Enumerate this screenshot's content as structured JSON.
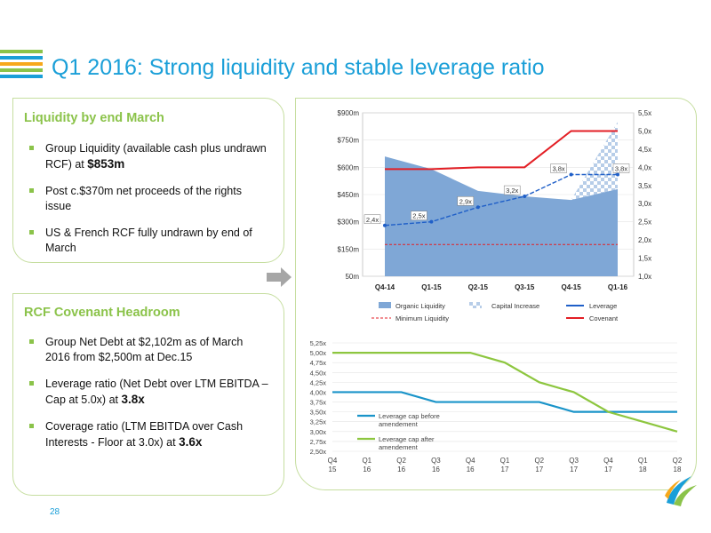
{
  "header": {
    "title": "Q1 2016: Strong liquidity and stable leverage ratio",
    "stripe_colors": [
      "#8bc34a",
      "#1a9fd8",
      "#f7a81b",
      "#8bc34a",
      "#1a9fd8"
    ]
  },
  "liquidity": {
    "title": "Liquidity by end March",
    "bullets": [
      {
        "text": "Group Liquidity (available cash plus undrawn RCF) at ",
        "bold": "$853m"
      },
      {
        "text": "Post c.$370m net proceeds of the rights issue",
        "bold": ""
      },
      {
        "text": "US & French RCF fully undrawn by end of March",
        "bold": ""
      }
    ]
  },
  "covenant": {
    "title": "RCF Covenant Headroom",
    "bullets": [
      {
        "text": "Group Net Debt at $2,102m as of March 2016 from $2,500m at Dec.15",
        "bold": ""
      },
      {
        "text": "Leverage ratio (Net Debt over LTM EBITDA – Cap at 5.0x) at ",
        "bold": "3.8x"
      },
      {
        "text": "Coverage ratio (LTM EBITDA over Cash Interests - Floor at 3.0x) at ",
        "bold": "3.6x"
      }
    ]
  },
  "page_number": "28",
  "colors": {
    "accent_blue": "#1a9fd8",
    "accent_green": "#8bc34a",
    "liquidity_area": "#7fa7d6",
    "covenant_red": "#e31e24",
    "leverage_blue": "#1f5fc8",
    "cap_before": "#1a94c9",
    "cap_after": "#8dc63f"
  },
  "chart_data": [
    {
      "type": "area",
      "categories": [
        "Q4-14",
        "Q1-15",
        "Q2-15",
        "Q3-15",
        "Q4-15",
        "Q1-16"
      ],
      "left_axis": {
        "ticks": [
          "$900m",
          "$750m",
          "$600m",
          "$450m",
          "$300m",
          "$150m",
          "50m"
        ],
        "ylim": [
          0,
          900
        ]
      },
      "right_axis": {
        "ticks": [
          "5,5x",
          "5,0x",
          "4,5x",
          "4,0x",
          "3,5x",
          "3,0x",
          "2,5x",
          "2,0x",
          "1,5x",
          "1,0x"
        ],
        "ylim": [
          1.0,
          5.5
        ]
      },
      "series": [
        {
          "name": "Organic Liquidity",
          "type": "area",
          "axis": "left",
          "values": [
            660,
            590,
            470,
            440,
            420,
            480
          ]
        },
        {
          "name": "Capital Increase",
          "type": "area",
          "axis": "left",
          "values": [
            0,
            0,
            0,
            0,
            0,
            370
          ]
        },
        {
          "name": "Minimum Liquidity",
          "type": "dashed-line",
          "axis": "left",
          "values": [
            175,
            175,
            175,
            175,
            175,
            175
          ]
        },
        {
          "name": "Leverage",
          "type": "line",
          "axis": "right",
          "values": [
            2.4,
            2.5,
            2.9,
            3.2,
            3.8,
            3.8
          ],
          "labels": [
            "2,4x",
            "2,5x",
            "2,9x",
            "3,2x",
            "3,8x",
            "3,8x"
          ]
        },
        {
          "name": "Covenant",
          "type": "line",
          "axis": "right",
          "x": [
            0,
            1,
            2,
            3,
            4,
            5
          ],
          "values": [
            3.95,
            3.95,
            4.0,
            4.0,
            5.0,
            5.0
          ]
        }
      ],
      "legend": [
        "Organic Liquidity",
        "Capital Increase",
        "Leverage",
        "Minimum Liquidity",
        "Covenant"
      ]
    },
    {
      "type": "line",
      "categories": [
        "Q4\n15",
        "Q1\n16",
        "Q2\n16",
        "Q3\n16",
        "Q4\n16",
        "Q1\n17",
        "Q2\n17",
        "Q3\n17",
        "Q4\n17",
        "Q1\n18",
        "Q2\n18"
      ],
      "y_ticks": [
        "5,25x",
        "5,00x",
        "4,75x",
        "4,50x",
        "4,25x",
        "4,00x",
        "3,75x",
        "3,50x",
        "3,25x",
        "3,00x",
        "2,75x",
        "2,50x"
      ],
      "ylim": [
        2.5,
        5.25
      ],
      "series": [
        {
          "name": "Leverage cap before amendement",
          "values": [
            4.0,
            4.0,
            4.0,
            3.75,
            3.75,
            3.75,
            3.75,
            3.5,
            3.5,
            3.5,
            3.5
          ]
        },
        {
          "name": "Leverage cap after amendement",
          "values": [
            5.0,
            5.0,
            5.0,
            5.0,
            5.0,
            4.75,
            4.25,
            4.0,
            3.5,
            3.25,
            3.0
          ]
        }
      ]
    }
  ]
}
